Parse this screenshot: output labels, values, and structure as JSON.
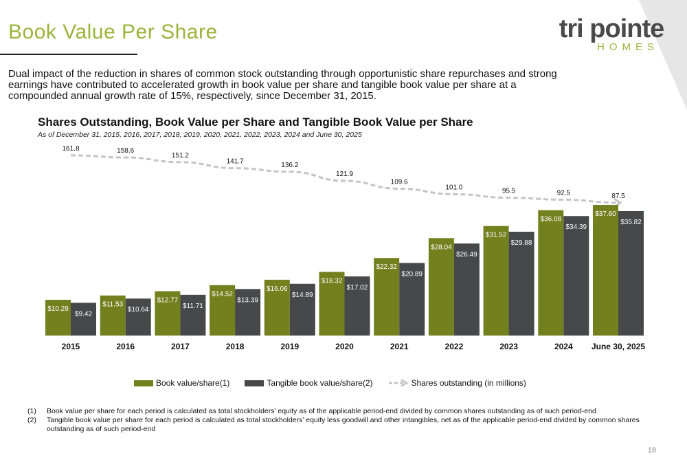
{
  "page": {
    "title": "Book Value Per Share",
    "logo_main": "tri pointe",
    "logo_sub": "HOMES",
    "intro": "Dual impact of the reduction in shares of common stock outstanding through opportunistic share repurchases and strong earnings have contributed to accelerated growth in book value per share and tangible book value per share at a compounded annual growth rate of 15%, respectively, since December 31, 2015.",
    "page_number": "18",
    "footnotes": [
      {
        "num": "(1)",
        "text": "Book value per share for each period is calculated as total stockholders’ equity as of the applicable period-end divided by common shares outstanding as of such period-end"
      },
      {
        "num": "(2)",
        "text": "Tangible book value per share for each period is calculated as total stockholders’ equity less goodwill and other intangibles, net as of the applicable period-end divided by common shares outstanding as of such period-end"
      }
    ]
  },
  "colors": {
    "title_green": "#9bb43c",
    "bar_book": "#72801e",
    "bar_tangible": "#47484a",
    "shares_line": "#c4c4c4",
    "corner_gray": "#e6e6e6"
  },
  "chart_data": {
    "type": "bar",
    "title": "Shares Outstanding, Book Value per Share and Tangible Book Value per Share",
    "subtitle": "As of December 31, 2015, 2016, 2017, 2018, 2019, 2020, 2021, 2022, 2023, 2024 and June 30, 2025",
    "categories": [
      "2015",
      "2016",
      "2017",
      "2018",
      "2019",
      "2020",
      "2021",
      "2022",
      "2023",
      "2024",
      "June 30, 2025"
    ],
    "series": [
      {
        "name": "Book value/share(1)",
        "values": [
          10.29,
          11.53,
          12.77,
          14.52,
          16.06,
          18.32,
          22.32,
          28.04,
          31.52,
          36.08,
          37.6
        ],
        "labels": [
          "$10.29",
          "$11.53",
          "$12.77",
          "$14.52",
          "$16.06",
          "$18.32",
          "$22.32",
          "$28.04",
          "$31.52",
          "$36.08",
          "$37.60"
        ]
      },
      {
        "name": "Tangible book value/share(2)",
        "values": [
          9.42,
          10.64,
          11.71,
          13.39,
          14.89,
          17.02,
          20.89,
          26.49,
          29.88,
          34.39,
          35.82
        ],
        "labels": [
          "$9.42",
          "$10.64",
          "$11.71",
          "$13.39",
          "$14.89",
          "$17.02",
          "$20.89",
          "$26.49",
          "$29.88",
          "$34.39",
          "$35.82"
        ]
      },
      {
        "name": "Shares outstanding (in millions)",
        "type": "line",
        "values": [
          161.8,
          158.6,
          151.2,
          141.7,
          136.2,
          121.9,
          109.6,
          101.0,
          95.5,
          92.5,
          87.5
        ],
        "labels": [
          "161.8",
          "158.6",
          "151.2",
          "141.7",
          "136.2",
          "121.9",
          "109.6",
          "101.0",
          "95.5",
          "92.5",
          "87.5"
        ]
      }
    ],
    "y_bar_range": [
      0,
      37.6
    ],
    "y_line_range": [
      0,
      161.8
    ],
    "grid": false,
    "legend": "bottom"
  }
}
